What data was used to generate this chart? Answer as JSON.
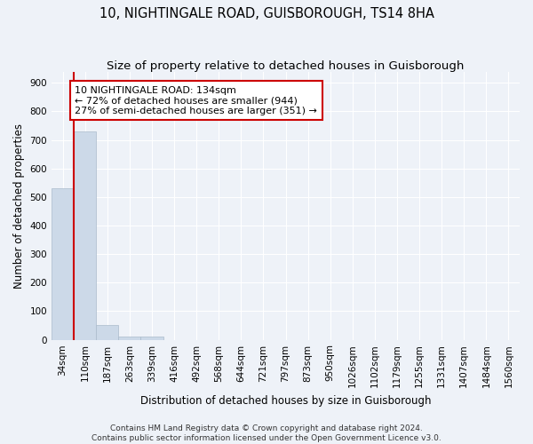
{
  "title": "10, NIGHTINGALE ROAD, GUISBOROUGH, TS14 8HA",
  "subtitle": "Size of property relative to detached houses in Guisborough",
  "xlabel": "Distribution of detached houses by size in Guisborough",
  "ylabel": "Number of detached properties",
  "categories": [
    "34sqm",
    "110sqm",
    "187sqm",
    "263sqm",
    "339sqm",
    "416sqm",
    "492sqm",
    "568sqm",
    "644sqm",
    "721sqm",
    "797sqm",
    "873sqm",
    "950sqm",
    "1026sqm",
    "1102sqm",
    "1179sqm",
    "1255sqm",
    "1331sqm",
    "1407sqm",
    "1484sqm",
    "1560sqm"
  ],
  "values": [
    530,
    730,
    50,
    12,
    10,
    0,
    0,
    0,
    0,
    0,
    0,
    0,
    0,
    0,
    0,
    0,
    0,
    0,
    0,
    0,
    0
  ],
  "bar_color": "#ccd9e8",
  "bar_edgecolor": "#aabbcc",
  "ylim": [
    0,
    940
  ],
  "yticks": [
    0,
    100,
    200,
    300,
    400,
    500,
    600,
    700,
    800,
    900
  ],
  "property_line_color": "#cc0000",
  "annotation_text": "10 NIGHTINGALE ROAD: 134sqm\n← 72% of detached houses are smaller (944)\n27% of semi-detached houses are larger (351) →",
  "annotation_box_color": "#cc0000",
  "footnote": "Contains HM Land Registry data © Crown copyright and database right 2024.\nContains public sector information licensed under the Open Government Licence v3.0.",
  "background_color": "#eef2f8",
  "grid_color": "#ffffff",
  "title_fontsize": 10.5,
  "subtitle_fontsize": 9.5,
  "label_fontsize": 8.5,
  "tick_fontsize": 7.5,
  "footnote_fontsize": 6.5
}
